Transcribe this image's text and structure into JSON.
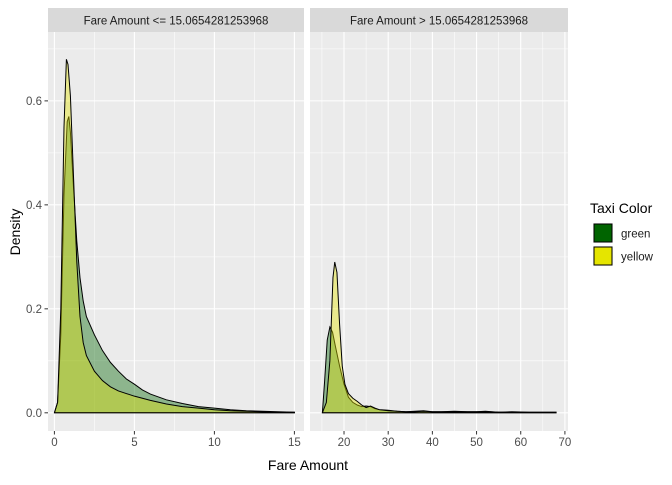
{
  "chart_data": [
    {
      "type": "area",
      "facet_label": "Fare Amount <=  15.0654281253968",
      "xlim": [
        0,
        15
      ],
      "ylim": [
        0,
        0.7
      ],
      "x_ticks": [
        0,
        5,
        10,
        15
      ],
      "y_ticks": [
        0.0,
        0.2,
        0.4,
        0.6
      ],
      "series": [
        {
          "name": "green",
          "points": [
            [
              0,
              0.0
            ],
            [
              0.2,
              0.02
            ],
            [
              0.4,
              0.15
            ],
            [
              0.6,
              0.42
            ],
            [
              0.8,
              0.56
            ],
            [
              0.9,
              0.57
            ],
            [
              1.0,
              0.54
            ],
            [
              1.2,
              0.43
            ],
            [
              1.4,
              0.33
            ],
            [
              1.6,
              0.26
            ],
            [
              1.8,
              0.215
            ],
            [
              2.0,
              0.185
            ],
            [
              2.5,
              0.15
            ],
            [
              3.0,
              0.12
            ],
            [
              3.5,
              0.097
            ],
            [
              4.0,
              0.08
            ],
            [
              4.5,
              0.065
            ],
            [
              5.0,
              0.055
            ],
            [
              5.5,
              0.044
            ],
            [
              6.0,
              0.036
            ],
            [
              7.0,
              0.025
            ],
            [
              8.0,
              0.018
            ],
            [
              9.0,
              0.012
            ],
            [
              10.0,
              0.009
            ],
            [
              11.0,
              0.006
            ],
            [
              12.0,
              0.004
            ],
            [
              13.0,
              0.003
            ],
            [
              14.0,
              0.002
            ],
            [
              15.0,
              0.001
            ]
          ]
        },
        {
          "name": "yellow",
          "points": [
            [
              0,
              0.0
            ],
            [
              0.2,
              0.02
            ],
            [
              0.4,
              0.2
            ],
            [
              0.6,
              0.55
            ],
            [
              0.75,
              0.68
            ],
            [
              0.85,
              0.67
            ],
            [
              1.0,
              0.61
            ],
            [
              1.2,
              0.45
            ],
            [
              1.4,
              0.29
            ],
            [
              1.6,
              0.185
            ],
            [
              1.8,
              0.135
            ],
            [
              2.0,
              0.11
            ],
            [
              2.5,
              0.08
            ],
            [
              3.0,
              0.062
            ],
            [
              3.5,
              0.05
            ],
            [
              4.0,
              0.042
            ],
            [
              5.0,
              0.032
            ],
            [
              6.0,
              0.024
            ],
            [
              7.0,
              0.017
            ],
            [
              8.0,
              0.012
            ],
            [
              9.0,
              0.009
            ],
            [
              10.0,
              0.006
            ],
            [
              11.0,
              0.004
            ],
            [
              12.0,
              0.003
            ],
            [
              13.0,
              0.002
            ],
            [
              14.0,
              0.001
            ],
            [
              15.0,
              0.001
            ]
          ]
        }
      ]
    },
    {
      "type": "area",
      "facet_label": "Fare Amount >  15.0654281253968",
      "xlim": [
        15,
        70
      ],
      "ylim": [
        0,
        0.7
      ],
      "x_ticks": [
        20,
        30,
        40,
        50,
        60,
        70
      ],
      "y_ticks": [
        0.0,
        0.2,
        0.4,
        0.6
      ],
      "series": [
        {
          "name": "green",
          "points": [
            [
              15.1,
              0.0
            ],
            [
              15.6,
              0.06
            ],
            [
              16.2,
              0.14
            ],
            [
              16.8,
              0.165
            ],
            [
              17.4,
              0.155
            ],
            [
              18.0,
              0.13
            ],
            [
              19.0,
              0.09
            ],
            [
              20.0,
              0.055
            ],
            [
              21.0,
              0.03
            ],
            [
              22.0,
              0.02
            ],
            [
              23.0,
              0.015
            ],
            [
              24.0,
              0.012
            ],
            [
              25.0,
              0.013
            ],
            [
              26.0,
              0.012
            ],
            [
              27.0,
              0.008
            ],
            [
              28.0,
              0.006
            ],
            [
              30.0,
              0.005
            ],
            [
              32.0,
              0.003
            ],
            [
              34.0,
              0.002
            ],
            [
              36.0,
              0.003
            ],
            [
              38.0,
              0.004
            ],
            [
              40.0,
              0.002
            ],
            [
              42.0,
              0.002
            ],
            [
              45.0,
              0.003
            ],
            [
              48.0,
              0.002
            ],
            [
              50.0,
              0.002
            ],
            [
              52.0,
              0.003
            ],
            [
              55.0,
              0.001
            ],
            [
              58.0,
              0.002
            ],
            [
              62.0,
              0.001
            ],
            [
              65.0,
              0.001
            ],
            [
              68.0,
              0.001
            ]
          ]
        },
        {
          "name": "yellow",
          "points": [
            [
              15.1,
              0.0
            ],
            [
              16.0,
              0.02
            ],
            [
              16.8,
              0.1
            ],
            [
              17.5,
              0.26
            ],
            [
              17.9,
              0.29
            ],
            [
              18.4,
              0.27
            ],
            [
              19.0,
              0.17
            ],
            [
              19.6,
              0.09
            ],
            [
              20.2,
              0.055
            ],
            [
              21.0,
              0.037
            ],
            [
              22.0,
              0.028
            ],
            [
              23.0,
              0.022
            ],
            [
              24.0,
              0.015
            ],
            [
              25.0,
              0.01
            ],
            [
              26.0,
              0.013
            ],
            [
              27.0,
              0.009
            ],
            [
              28.0,
              0.006
            ],
            [
              30.0,
              0.004
            ],
            [
              32.0,
              0.003
            ],
            [
              34.0,
              0.002
            ],
            [
              36.0,
              0.002
            ],
            [
              38.0,
              0.003
            ],
            [
              40.0,
              0.002
            ],
            [
              44.0,
              0.002
            ],
            [
              48.0,
              0.002
            ],
            [
              52.0,
              0.002
            ],
            [
              56.0,
              0.001
            ],
            [
              60.0,
              0.001
            ],
            [
              65.0,
              0.001
            ],
            [
              68.0,
              0.001
            ]
          ]
        }
      ]
    }
  ],
  "axes": {
    "xlabel": "Fare Amount",
    "ylabel": "Density"
  },
  "legend": {
    "title": "Taxi Color",
    "placement": "right",
    "items": [
      {
        "label": "green",
        "color": "#006400"
      },
      {
        "label": "yellow",
        "color": "#e5e500"
      }
    ]
  },
  "colors": {
    "panel_bg": "#ebebeb",
    "strip_bg": "#d9d9d9",
    "grid_major": "#ffffff",
    "green_fill": "#006400",
    "yellow_fill": "#e5e500",
    "fill_opacity": 0.4
  }
}
